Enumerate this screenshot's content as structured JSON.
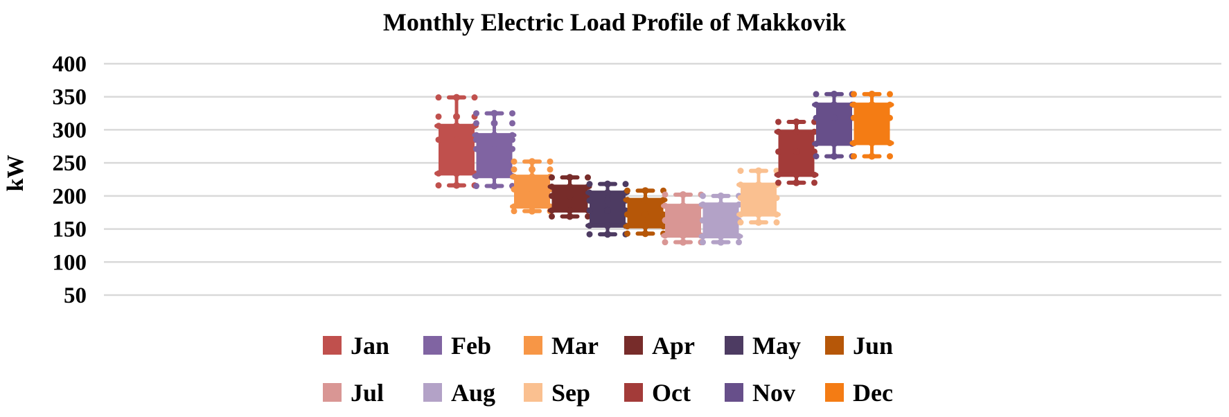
{
  "chart_data": {
    "type": "boxplot",
    "title": "Monthly Electric Load Profile of Makkovik",
    "ylabel": "kW",
    "xlabel": "",
    "ylim": [
      50,
      400
    ],
    "yticks": [
      400,
      350,
      300,
      250,
      200,
      150,
      100,
      50
    ],
    "grid": true,
    "legend_position": "bottom",
    "series": [
      {
        "name": "Jan",
        "color": "#C0504D",
        "min": 216,
        "q1": 234,
        "median": 285,
        "q3": 306,
        "max": 349,
        "points": [
          216,
          234,
          285,
          306,
          320,
          349
        ]
      },
      {
        "name": "Feb",
        "color": "#8064A2",
        "min": 215,
        "q1": 230,
        "median": 271,
        "q3": 292,
        "max": 325,
        "points": [
          215,
          230,
          271,
          285,
          292,
          310,
          325
        ]
      },
      {
        "name": "Mar",
        "color": "#F79646",
        "min": 177,
        "q1": 184,
        "median": 210,
        "q3": 229,
        "max": 252,
        "points": [
          177,
          184,
          210,
          229,
          240,
          252
        ]
      },
      {
        "name": "Apr",
        "color": "#772C2A",
        "min": 169,
        "q1": 178,
        "median": 200,
        "q3": 214,
        "max": 228,
        "points": [
          169,
          178,
          200,
          214,
          228
        ]
      },
      {
        "name": "May",
        "color": "#4D3B62",
        "min": 142,
        "q1": 155,
        "median": 178,
        "q3": 205,
        "max": 218,
        "points": [
          142,
          155,
          178,
          193,
          205,
          218
        ]
      },
      {
        "name": "Jun",
        "color": "#B65708",
        "min": 143,
        "q1": 154,
        "median": 172,
        "q3": 194,
        "max": 208,
        "points": [
          143,
          154,
          172,
          194,
          208
        ]
      },
      {
        "name": "Jul",
        "color": "#D99694",
        "min": 130,
        "q1": 140,
        "median": 163,
        "q3": 185,
        "max": 202,
        "points": [
          130,
          140,
          163,
          185,
          202
        ]
      },
      {
        "name": "Aug",
        "color": "#B3A2C7",
        "min": 130,
        "q1": 139,
        "median": 163,
        "q3": 187,
        "max": 200,
        "points": [
          130,
          139,
          163,
          187,
          200
        ]
      },
      {
        "name": "Sep",
        "color": "#FAC090",
        "min": 160,
        "q1": 172,
        "median": 197,
        "q3": 217,
        "max": 238,
        "points": [
          160,
          172,
          197,
          217,
          238
        ]
      },
      {
        "name": "Oct",
        "color": "#A33B39",
        "min": 220,
        "q1": 232,
        "median": 267,
        "q3": 297,
        "max": 312,
        "points": [
          220,
          232,
          267,
          297,
          312
        ]
      },
      {
        "name": "Nov",
        "color": "#674F8A",
        "min": 260,
        "q1": 279,
        "median": 318,
        "q3": 338,
        "max": 354,
        "points": [
          260,
          279,
          318,
          338,
          354
        ]
      },
      {
        "name": "Dec",
        "color": "#F47C14",
        "min": 260,
        "q1": 280,
        "median": 318,
        "q3": 338,
        "max": 354,
        "points": [
          260,
          280,
          318,
          338,
          354
        ]
      }
    ]
  }
}
